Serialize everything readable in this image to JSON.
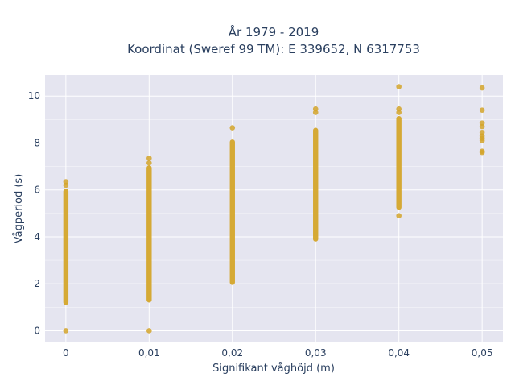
{
  "chart_data": {
    "type": "scatter",
    "title_line1": "År 1979 - 2019",
    "title_line2": "Koordinat (Sweref 99 TM): E 339652, N 6317753",
    "xlabel": "Signifikant våghöjd (m)",
    "ylabel": "Vågperiod (s)",
    "xlim": [
      -0.0025,
      0.0525
    ],
    "ylim": [
      -0.5,
      10.9
    ],
    "grid": true,
    "background": "#e5e5f0",
    "grid_color": "#ffffff",
    "marker_color": "#d4a52a",
    "x_ticks": [
      {
        "value": 0,
        "label": "0"
      },
      {
        "value": 0.01,
        "label": "0,01"
      },
      {
        "value": 0.02,
        "label": "0,02"
      },
      {
        "value": 0.03,
        "label": "0,03"
      },
      {
        "value": 0.04,
        "label": "0,04"
      },
      {
        "value": 0.05,
        "label": "0,05"
      }
    ],
    "y_ticks": [
      {
        "value": 0,
        "label": "0"
      },
      {
        "value": 2,
        "label": "2"
      },
      {
        "value": 4,
        "label": "4"
      },
      {
        "value": 6,
        "label": "6"
      },
      {
        "value": 8,
        "label": "8"
      },
      {
        "value": 10,
        "label": "10"
      }
    ],
    "ranges": [
      {
        "x": 0,
        "y_min": 1.1,
        "y_max": 6.05
      },
      {
        "x": 0.01,
        "y_min": 1.2,
        "y_max": 7.05
      },
      {
        "x": 0.02,
        "y_min": 1.95,
        "y_max": 8.15
      },
      {
        "x": 0.03,
        "y_min": 3.8,
        "y_max": 8.65
      },
      {
        "x": 0.04,
        "y_min": 5.15,
        "y_max": 9.15
      }
    ],
    "points": [
      {
        "x": 0,
        "y": 0.0
      },
      {
        "x": 0,
        "y": 6.2
      },
      {
        "x": 0,
        "y": 6.35
      },
      {
        "x": 0.01,
        "y": 0.0
      },
      {
        "x": 0.01,
        "y": 7.15
      },
      {
        "x": 0.01,
        "y": 7.35
      },
      {
        "x": 0.02,
        "y": 8.65
      },
      {
        "x": 0.03,
        "y": 9.3
      },
      {
        "x": 0.03,
        "y": 9.45
      },
      {
        "x": 0.04,
        "y": 4.9
      },
      {
        "x": 0.04,
        "y": 9.3
      },
      {
        "x": 0.04,
        "y": 9.45
      },
      {
        "x": 0.04,
        "y": 10.4
      },
      {
        "x": 0.05,
        "y": 7.6
      },
      {
        "x": 0.05,
        "y": 7.65
      },
      {
        "x": 0.05,
        "y": 8.1
      },
      {
        "x": 0.05,
        "y": 8.2
      },
      {
        "x": 0.05,
        "y": 8.3
      },
      {
        "x": 0.05,
        "y": 8.45
      },
      {
        "x": 0.05,
        "y": 8.7
      },
      {
        "x": 0.05,
        "y": 8.85
      },
      {
        "x": 0.05,
        "y": 9.4
      },
      {
        "x": 0.05,
        "y": 10.35
      }
    ]
  }
}
